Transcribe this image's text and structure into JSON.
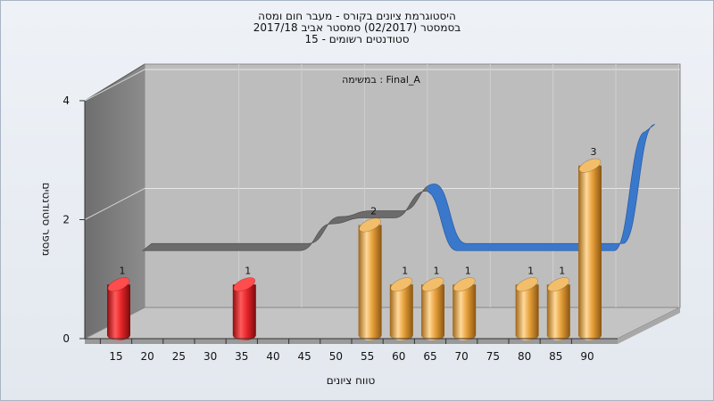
{
  "chart_data": {
    "type": "bar",
    "title_lines": [
      "היסטוגרמת ציונים בקורס - מעבר חום ומסה",
      "בסמסטר  (02/2017)  סמסטר אביב 2017/18",
      "סטודנטים רשומים - 15"
    ],
    "subtitle": "במשימה : Final_A",
    "xlabel": "טווח ציונים",
    "ylabel": "מספר סטודנטים",
    "x_ticks": [
      "15",
      "20",
      "25",
      "30",
      "35",
      "40",
      "45",
      "50",
      "55",
      "60",
      "65",
      "70",
      "75",
      "80",
      "85",
      "90"
    ],
    "y_ticks": [
      "0",
      "2",
      "4"
    ],
    "ylim": [
      0,
      4
    ],
    "bars": [
      {
        "x": "15",
        "value": 1,
        "label": "1",
        "color": "red"
      },
      {
        "x": "35",
        "value": 1,
        "label": "1",
        "color": "red"
      },
      {
        "x": "55",
        "value": 2,
        "label": "2",
        "color": "gold"
      },
      {
        "x": "60",
        "value": 1,
        "label": "1",
        "color": "gold"
      },
      {
        "x": "65",
        "value": 1,
        "label": "1",
        "color": "gold"
      },
      {
        "x": "70",
        "value": 1,
        "label": "1",
        "color": "gold"
      },
      {
        "x": "80",
        "value": 1,
        "label": "1",
        "color": "gold"
      },
      {
        "x": "85",
        "value": 1,
        "label": "1",
        "color": "gold"
      },
      {
        "x": "90",
        "value": 3,
        "label": "3",
        "color": "gold"
      }
    ],
    "curve": {
      "x": [
        15,
        20,
        25,
        30,
        35,
        40,
        45,
        50,
        55,
        60,
        65,
        70,
        75,
        80,
        85,
        90,
        95
      ],
      "values": [
        1.3,
        1.3,
        1.3,
        1.3,
        1.3,
        1.3,
        1.75,
        1.85,
        1.85,
        2.3,
        1.3,
        1.3,
        1.3,
        1.3,
        1.3,
        1.3,
        3.3
      ]
    },
    "colors": {
      "red": "#e8262a",
      "gold": "#e8a13c",
      "curve_front": "#3a78cc",
      "curve_back": "#6b6b6b",
      "back_wall": "#bdbdbd",
      "left_wall": "#7a7a7a",
      "floor": "#c4c4c4"
    }
  }
}
